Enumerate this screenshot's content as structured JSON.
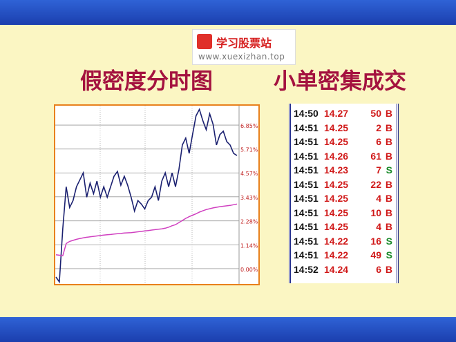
{
  "logo": {
    "name": "学习股票站",
    "url": "www.xuexizhan.top"
  },
  "title_left": "假密度分时图",
  "title_right": "小单密集成交",
  "chart_data": {
    "type": "line",
    "ylim": [
      -0.73,
      7.71
    ],
    "yticks": [
      {
        "value": 0,
        "label": "0.00%"
      },
      {
        "value": 1.14,
        "label": "1.14%"
      },
      {
        "value": 2.28,
        "label": "2.28%"
      },
      {
        "value": 3.43,
        "label": "3.43%"
      },
      {
        "value": 4.57,
        "label": "4.57%"
      },
      {
        "value": 5.71,
        "label": "5.71%"
      },
      {
        "value": 6.85,
        "label": "6.85%"
      }
    ],
    "grid": true,
    "series": [
      {
        "color": "#1a2070",
        "values": [
          -0.4,
          -0.63,
          1.92,
          3.91,
          2.92,
          3.25,
          3.91,
          4.24,
          4.57,
          3.41,
          4.08,
          3.58,
          4.18,
          3.41,
          3.91,
          3.41,
          3.91,
          4.41,
          4.64,
          3.98,
          4.41,
          3.98,
          3.41,
          2.75,
          3.25,
          3.08,
          2.85,
          3.25,
          3.41,
          3.91,
          3.25,
          4.18,
          4.57,
          3.91,
          4.57,
          3.91,
          4.74,
          5.9,
          6.23,
          5.5,
          6.4,
          7.29,
          7.6,
          7.06,
          6.63,
          7.39,
          6.89,
          5.9,
          6.4,
          6.56,
          6.06,
          5.9,
          5.5,
          5.4
        ]
      },
      {
        "color": "#d040c0",
        "values": [
          0.66,
          0.64,
          0.62,
          1.2,
          1.3,
          1.35,
          1.4,
          1.44,
          1.47,
          1.5,
          1.52,
          1.54,
          1.56,
          1.58,
          1.6,
          1.62,
          1.63,
          1.65,
          1.67,
          1.68,
          1.7,
          1.71,
          1.72,
          1.74,
          1.76,
          1.78,
          1.8,
          1.82,
          1.84,
          1.86,
          1.88,
          1.9,
          1.93,
          1.98,
          2.05,
          2.1,
          2.2,
          2.3,
          2.4,
          2.48,
          2.55,
          2.62,
          2.7,
          2.76,
          2.82,
          2.86,
          2.9,
          2.93,
          2.96,
          2.98,
          3.0,
          3.02,
          3.05,
          3.08
        ]
      }
    ]
  },
  "table": {
    "rows": [
      [
        "14:50",
        "14.27",
        "50",
        "B"
      ],
      [
        "14:51",
        "14.25",
        "2",
        "B"
      ],
      [
        "14:51",
        "14.25",
        "6",
        "B"
      ],
      [
        "14:51",
        "14.26",
        "61",
        "B"
      ],
      [
        "14:51",
        "14.23",
        "7",
        "S"
      ],
      [
        "14:51",
        "14.25",
        "22",
        "B"
      ],
      [
        "14:51",
        "14.25",
        "4",
        "B"
      ],
      [
        "14:51",
        "14.25",
        "10",
        "B"
      ],
      [
        "14:51",
        "14.25",
        "4",
        "B"
      ],
      [
        "14:51",
        "14.22",
        "16",
        "S"
      ],
      [
        "14:51",
        "14.22",
        "49",
        "S"
      ],
      [
        "14:52",
        "14.24",
        "6",
        "B"
      ]
    ]
  }
}
